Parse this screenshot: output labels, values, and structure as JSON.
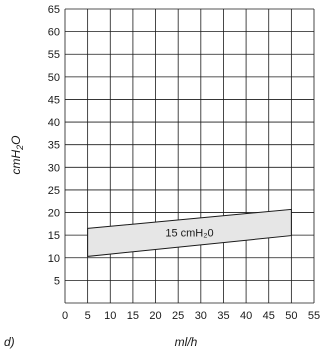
{
  "figure": {
    "panel_label": "d)"
  },
  "chart_data": {
    "type": "area",
    "xlabel": "ml/h",
    "ylabel_prefix": "cm",
    "ylabel_sub": "H",
    "ylabel_sub2": "2",
    "ylabel_suffix": "O",
    "xlim": [
      0,
      55
    ],
    "ylim": [
      0,
      65
    ],
    "x_ticks": [
      0,
      5,
      10,
      15,
      20,
      25,
      30,
      35,
      40,
      45,
      50,
      55
    ],
    "y_ticks": [
      5,
      10,
      15,
      20,
      25,
      30,
      35,
      40,
      45,
      50,
      55,
      60,
      65
    ],
    "grid": true,
    "series": [
      {
        "name": "15 cmH₂0",
        "x": [
          5,
          50
        ],
        "upper": [
          16.5,
          20.7
        ],
        "lower": [
          10.3,
          14.9
        ],
        "fill": "#e6e6e6"
      }
    ]
  }
}
